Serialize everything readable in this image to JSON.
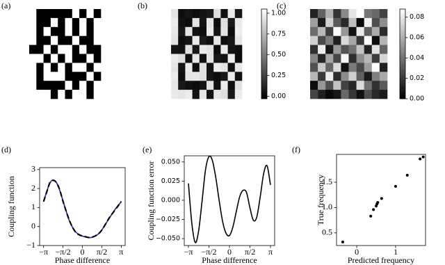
{
  "chart_data": [
    {
      "type": "heatmap",
      "label": "(a)",
      "colormap": "gray",
      "clim": [
        0,
        1
      ],
      "colorbar": false,
      "values": [
        [
          1,
          0,
          0,
          0,
          0,
          0,
          1,
          0,
          1,
          0
        ],
        [
          1,
          0,
          0,
          1,
          0,
          1,
          0,
          1,
          0,
          1
        ],
        [
          1,
          0,
          1,
          0,
          0,
          1,
          0,
          1,
          0,
          1
        ],
        [
          1,
          0,
          0,
          1,
          0,
          0,
          1,
          0,
          0,
          1
        ],
        [
          0,
          0,
          1,
          0,
          1,
          1,
          0,
          1,
          0,
          0
        ],
        [
          1,
          1,
          0,
          1,
          0,
          1,
          0,
          0,
          1,
          0
        ],
        [
          1,
          0,
          1,
          0,
          1,
          0,
          1,
          1,
          0,
          1
        ],
        [
          1,
          0,
          1,
          1,
          1,
          0,
          0,
          0,
          1,
          0
        ],
        [
          1,
          0,
          0,
          0,
          0,
          1,
          0,
          1,
          0,
          1
        ],
        [
          1,
          1,
          1,
          0,
          1,
          0,
          1,
          1,
          0,
          1
        ]
      ]
    },
    {
      "type": "heatmap",
      "label": "(b)",
      "colormap": "gray",
      "clim": [
        -0.03,
        1.05
      ],
      "colorbar": true,
      "cticks": [
        {
          "value": 0,
          "label": "0.00"
        },
        {
          "value": 0.25,
          "label": "0.25"
        },
        {
          "value": 0.5,
          "label": "0.50"
        },
        {
          "value": 0.75,
          "label": "0.75"
        },
        {
          "value": 1,
          "label": "1.00"
        }
      ],
      "values": [
        [
          0.94,
          0.03,
          0.06,
          0.02,
          0.05,
          0.08,
          0.91,
          0.04,
          0.96,
          0.07
        ],
        [
          0.97,
          0.05,
          0.02,
          0.93,
          0.06,
          0.95,
          0.03,
          0.92,
          0.08,
          0.96
        ],
        [
          0.95,
          0.07,
          0.94,
          0.04,
          0.03,
          0.97,
          0.06,
          0.93,
          0.02,
          0.98
        ],
        [
          0.93,
          0.02,
          0.05,
          0.96,
          0.08,
          0.04,
          0.95,
          0.03,
          0.06,
          0.94
        ],
        [
          0.06,
          0.04,
          0.92,
          0.07,
          0.97,
          0.94,
          0.02,
          0.96,
          0.05,
          0.03
        ],
        [
          0.96,
          0.91,
          0.03,
          0.95,
          0.04,
          0.93,
          0.07,
          0.05,
          0.97,
          0.02
        ],
        [
          0.94,
          0.06,
          0.96,
          0.03,
          0.92,
          0.05,
          0.98,
          0.94,
          0.04,
          0.95
        ],
        [
          0.97,
          0.03,
          0.93,
          0.95,
          0.91,
          0.06,
          0.02,
          0.07,
          0.96,
          0.04
        ],
        [
          0.95,
          0.08,
          0.04,
          0.02,
          0.06,
          0.93,
          0.05,
          0.97,
          0.03,
          0.92
        ],
        [
          0.96,
          0.94,
          0.97,
          0.05,
          0.93,
          0.04,
          0.95,
          0.91,
          0.07,
          0.97
        ]
      ]
    },
    {
      "type": "heatmap",
      "label": "(c)",
      "colormap": "gray",
      "clim": [
        0,
        0.088
      ],
      "colorbar": true,
      "cticks": [
        {
          "value": 0,
          "label": "0.00"
        },
        {
          "value": 0.02,
          "label": "0.02"
        },
        {
          "value": 0.04,
          "label": "0.04"
        },
        {
          "value": 0.06,
          "label": "0.06"
        },
        {
          "value": 0.08,
          "label": "0.08"
        }
      ],
      "values": [
        [
          0.012,
          0.034,
          0.061,
          0.018,
          0.047,
          0.079,
          0.088,
          0.041,
          0.036,
          0.023
        ],
        [
          0.055,
          0.009,
          0.072,
          0.031,
          0.014,
          0.066,
          0.002,
          0.083,
          0.027,
          0.049
        ],
        [
          0.038,
          0.064,
          0.021,
          0.086,
          0.052,
          0.007,
          0.081,
          0.033,
          0.059,
          0.015
        ],
        [
          0.071,
          0.026,
          0.044,
          0.011,
          0.075,
          0.058,
          0.019,
          0.087,
          0.004,
          0.062
        ],
        [
          0.017,
          0.082,
          0.008,
          0.053,
          0.029,
          0.039,
          0.068,
          0.012,
          0.078,
          0.035
        ],
        [
          0.046,
          0.013,
          0.057,
          0.024,
          0.085,
          0.016,
          0.049,
          0.063,
          0.021,
          0.074
        ],
        [
          0.028,
          0.069,
          0.035,
          0.076,
          0.006,
          0.042,
          0.025,
          0.054,
          0.087,
          0.011
        ],
        [
          0.063,
          0.019,
          0.081,
          0.015,
          0.048,
          0.071,
          0.033,
          0.009,
          0.044,
          0.058
        ],
        [
          0.005,
          0.052,
          0.027,
          0.067,
          0.022,
          0.013,
          0.076,
          0.039,
          0.017,
          0.031
        ],
        [
          0.024,
          0.011,
          0.003,
          0.008,
          0.036,
          0.019,
          0.006,
          0.027,
          0.014,
          0.009
        ]
      ]
    },
    {
      "type": "line",
      "label": "(d)",
      "xlabel": "Phase difference",
      "ylabel": "Coupling function",
      "x": [
        -3.14,
        -2.88,
        -2.62,
        -2.36,
        -2.09,
        -1.83,
        -1.57,
        -1.31,
        -1.05,
        -0.79,
        -0.52,
        -0.26,
        0,
        0.26,
        0.52,
        0.79,
        1.05,
        1.31,
        1.57,
        1.83,
        2.09,
        2.36,
        2.62,
        2.88,
        3.14
      ],
      "series": [
        {
          "color": "#2222aa",
          "dashed": false,
          "values": [
            1.3,
            1.85,
            2.3,
            2.45,
            2.3,
            1.9,
            1.35,
            0.8,
            0.3,
            -0.05,
            -0.3,
            -0.42,
            -0.5,
            -0.55,
            -0.58,
            -0.57,
            -0.5,
            -0.38,
            -0.18,
            0.08,
            0.35,
            0.62,
            0.88,
            1.1,
            1.3
          ]
        },
        {
          "color": "#000000",
          "dashed": true,
          "values": [
            1.32,
            1.83,
            2.32,
            2.43,
            2.3,
            1.92,
            1.33,
            0.8,
            0.32,
            -0.05,
            -0.32,
            -0.44,
            -0.5,
            -0.54,
            -0.58,
            -0.56,
            -0.49,
            -0.38,
            -0.19,
            0.08,
            0.37,
            0.63,
            0.85,
            1.08,
            1.32
          ]
        }
      ],
      "xlim": [
        -3.46,
        3.46
      ],
      "ylim": [
        -1,
        3.1
      ],
      "xticks": [
        {
          "value": -3.1416,
          "label": "−π"
        },
        {
          "value": -1.5708,
          "label": "−π/2"
        },
        0,
        {
          "value": 1.5708,
          "label": "π/2"
        },
        {
          "value": 3.1416,
          "label": "π"
        }
      ],
      "yticks": [
        {
          "value": -1,
          "label": "−1"
        },
        0,
        1,
        2,
        3
      ]
    },
    {
      "type": "line",
      "label": "(e)",
      "xlabel": "Phase difference",
      "ylabel": "Coupling function error",
      "x": [
        -3.14,
        -2.88,
        -2.62,
        -2.36,
        -2.09,
        -1.83,
        -1.57,
        -1.31,
        -1.05,
        -0.79,
        -0.52,
        -0.26,
        0,
        0.26,
        0.52,
        0.79,
        1.05,
        1.31,
        1.57,
        1.83,
        2.09,
        2.36,
        2.62,
        2.88,
        3.14
      ],
      "series": [
        {
          "color": "#000000",
          "dashed": false,
          "values": [
            0.022,
            -0.03,
            -0.055,
            -0.04,
            0,
            0.04,
            0.057,
            0.052,
            0.03,
            0,
            -0.028,
            -0.043,
            -0.046,
            -0.035,
            -0.015,
            0.005,
            0.013,
            0.01,
            -0.01,
            -0.026,
            -0.022,
            0.005,
            0.035,
            0.045,
            0.02
          ]
        }
      ],
      "xlim": [
        -3.46,
        3.46
      ],
      "ylim": [
        -0.059,
        0.058
      ],
      "xticks": [
        {
          "value": -3.1416,
          "label": "−π"
        },
        {
          "value": -1.5708,
          "label": "−π/2"
        },
        0,
        {
          "value": 1.5708,
          "label": "π/2"
        },
        {
          "value": 3.1416,
          "label": "π"
        }
      ],
      "yticks": [
        {
          "value": -0.05,
          "label": "−0.050"
        },
        {
          "value": -0.025,
          "label": "−0.025"
        },
        {
          "value": 0,
          "label": "0.000"
        },
        {
          "value": 0.025,
          "label": "0.025"
        },
        {
          "value": 0.05,
          "label": "0.050"
        }
      ]
    },
    {
      "type": "scatter",
      "label": "(f)",
      "xlabel": "Predicted frequency",
      "ylabel": "True frequency",
      "color": "#000000",
      "x": [
        -0.36,
        0.36,
        0.43,
        0.5,
        0.52,
        0.54,
        0.64,
        1.0,
        1.3,
        1.63,
        1.71
      ],
      "values": [
        0.32,
        0.83,
        0.96,
        1.03,
        1.07,
        1.1,
        1.18,
        1.42,
        1.64,
        1.96,
        2.0
      ],
      "xlim": [
        -0.52,
        1.77
      ],
      "ylim": [
        0.25,
        2.05
      ],
      "xticks": [
        0,
        1
      ],
      "yticks": [
        0.5,
        {
          "value": 1,
          "label": "1.0"
        },
        1.5
      ]
    }
  ]
}
